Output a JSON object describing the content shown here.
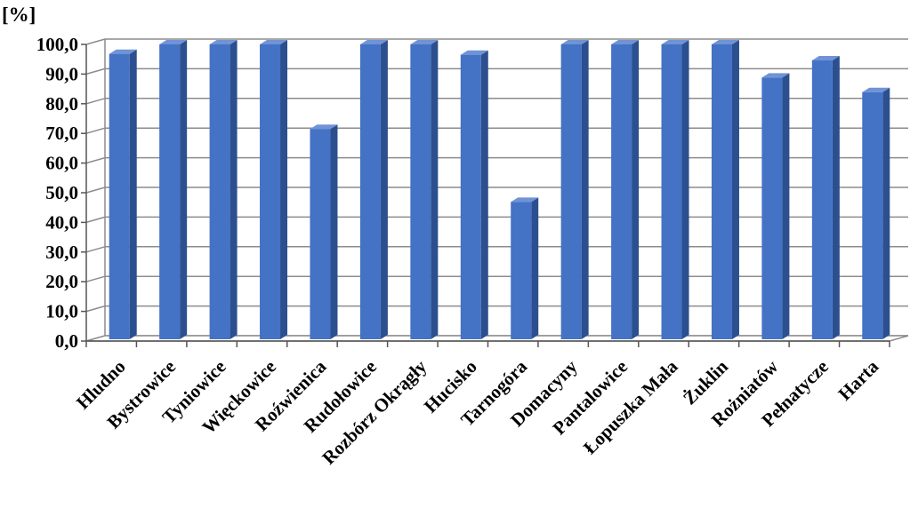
{
  "chart_data": {
    "type": "bar",
    "title": "",
    "ylabel": "[%]",
    "xlabel": "",
    "categories": [
      "Hludno",
      "Bystrowice",
      "Tyniowice",
      "Więckowice",
      "Roźwienica",
      "Rudołowice",
      "Rozbórz Okrągły",
      "Hucisko",
      "Tarnogóra",
      "Domacyny",
      "Pantalowice",
      "Łopuszka Mała",
      "Żuklin",
      "Rożniatów",
      "Pełnatycze",
      "Harta"
    ],
    "values": [
      96.8,
      100.0,
      100.0,
      100.0,
      71.5,
      100.0,
      100.0,
      96.5,
      46.9,
      100.0,
      100.0,
      100.0,
      100.0,
      88.8,
      94.6,
      83.9
    ],
    "ylim": [
      0,
      100
    ],
    "yticks": [
      "0,0",
      "10,0",
      "20,0",
      "30,0",
      "40,0",
      "50,0",
      "60,0",
      "70,0",
      "80,0",
      "90,0",
      "100,0"
    ],
    "grid": true,
    "legend": "none",
    "colors": {
      "bar_front": "#4472c4",
      "bar_side": "#2c4f8f",
      "bar_top": "#6f93d6",
      "grid": "#8c8c8c",
      "wall": "#ffffff"
    }
  }
}
